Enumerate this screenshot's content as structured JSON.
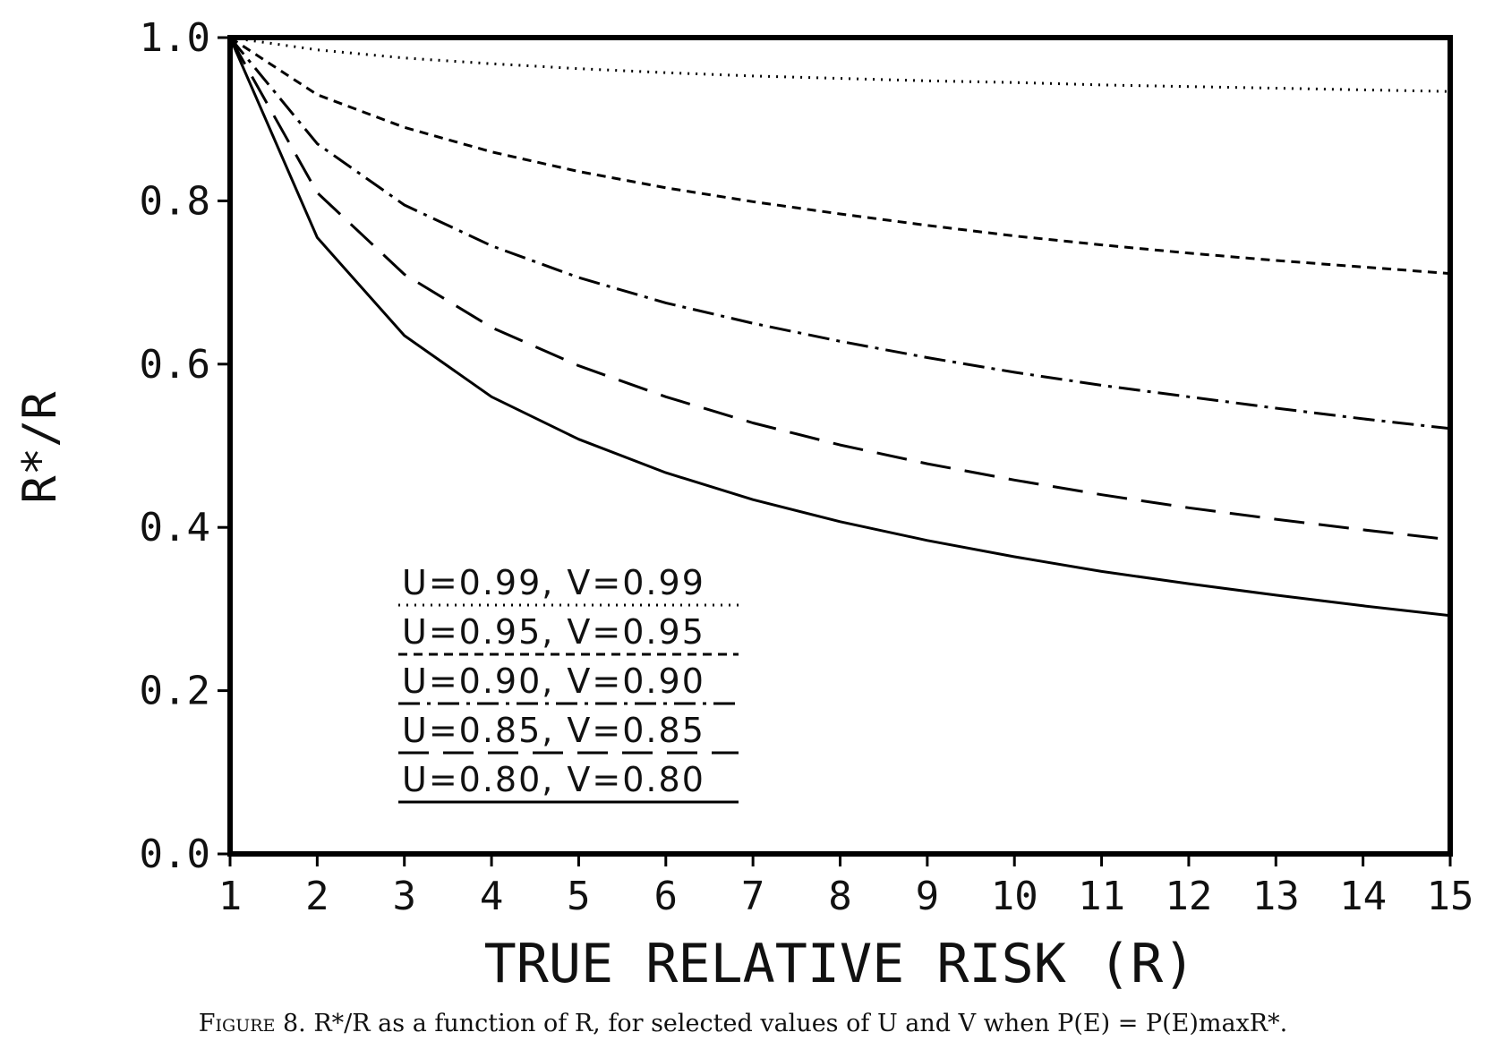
{
  "chart_data": {
    "type": "line",
    "xlabel": "TRUE RELATIVE RISK (R)",
    "ylabel": "R*/R",
    "xlim": [
      1,
      15
    ],
    "ylim": [
      0,
      1
    ],
    "grid": false,
    "legend_position": "bottom-left",
    "x_ticks": [
      1,
      2,
      3,
      4,
      5,
      6,
      7,
      8,
      9,
      10,
      11,
      12,
      13,
      14,
      15
    ],
    "y_ticks": [
      "0.0",
      "0.2",
      "0.4",
      "0.6",
      "0.8",
      "1.0"
    ],
    "x": [
      1,
      2,
      3,
      4,
      5,
      6,
      7,
      8,
      9,
      10,
      11,
      12,
      13,
      14,
      15
    ],
    "series": [
      {
        "name": "U=0.99, V=0.99",
        "style": "dotted",
        "values": [
          1.0,
          0.985,
          0.975,
          0.968,
          0.962,
          0.957,
          0.953,
          0.95,
          0.947,
          0.945,
          0.942,
          0.94,
          0.938,
          0.936,
          0.934
        ]
      },
      {
        "name": "U=0.95, V=0.95",
        "style": "dashed",
        "values": [
          1.0,
          0.93,
          0.89,
          0.86,
          0.836,
          0.816,
          0.799,
          0.784,
          0.77,
          0.757,
          0.746,
          0.736,
          0.727,
          0.719,
          0.711
        ]
      },
      {
        "name": "U=0.90, V=0.90",
        "style": "dash-dot",
        "values": [
          1.0,
          0.87,
          0.795,
          0.745,
          0.706,
          0.675,
          0.65,
          0.628,
          0.608,
          0.59,
          0.574,
          0.56,
          0.546,
          0.533,
          0.521
        ]
      },
      {
        "name": "U=0.85, V=0.85",
        "style": "long-dash",
        "values": [
          1.0,
          0.81,
          0.71,
          0.645,
          0.598,
          0.56,
          0.528,
          0.501,
          0.478,
          0.458,
          0.44,
          0.424,
          0.41,
          0.397,
          0.385
        ]
      },
      {
        "name": "U=0.80, V=0.80",
        "style": "solid",
        "values": [
          1.0,
          0.755,
          0.635,
          0.56,
          0.508,
          0.467,
          0.434,
          0.407,
          0.384,
          0.364,
          0.346,
          0.331,
          0.317,
          0.304,
          0.292
        ]
      }
    ]
  },
  "caption": {
    "figure_number": "Figure 8.",
    "text": "R*/R as a function of R, for selected values of U and V when P(E) = P(E)maxR*."
  }
}
